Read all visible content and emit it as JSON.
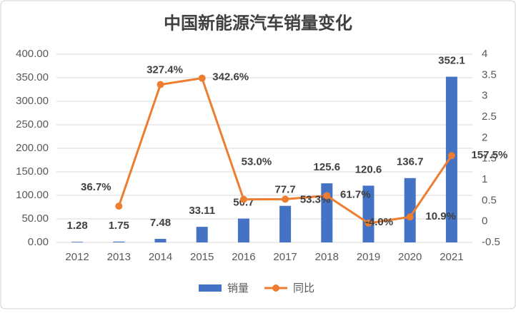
{
  "chart_data": {
    "type": "bar-line",
    "title": "中国新能源汽车销量变化",
    "categories": [
      "2012",
      "2013",
      "2014",
      "2015",
      "2016",
      "2017",
      "2018",
      "2019",
      "2020",
      "2021"
    ],
    "series": [
      {
        "name": "销量",
        "type": "bar",
        "color": "#4472c4",
        "values": [
          1.28,
          1.75,
          7.48,
          33.11,
          50.7,
          77.7,
          125.6,
          120.6,
          136.7,
          352.1
        ]
      },
      {
        "name": "同比",
        "type": "line",
        "axis": "y2",
        "color": "#ed7d31",
        "values": [
          null,
          0.367,
          3.274,
          3.426,
          0.53,
          0.533,
          0.617,
          -0.04,
          0.109,
          1.575
        ],
        "value_labels": [
          null,
          "36.7%",
          "327.4%",
          "342.6%",
          "53.0%",
          "53.3%",
          "61.7%",
          "-4.0%",
          "10.9%",
          "157.5%"
        ]
      }
    ],
    "ylim": [
      0,
      400
    ],
    "yticks": [
      {
        "value": 0,
        "label": "0.00"
      },
      {
        "value": 50,
        "label": "50.00"
      },
      {
        "value": 100,
        "label": "100.00"
      },
      {
        "value": 150,
        "label": "150.00"
      },
      {
        "value": 200,
        "label": "200.00"
      },
      {
        "value": 250,
        "label": "250.00"
      },
      {
        "value": 300,
        "label": "300.00"
      },
      {
        "value": 350,
        "label": "350.00"
      },
      {
        "value": 400,
        "label": "400.00"
      }
    ],
    "y2lim": [
      -0.5,
      4
    ],
    "y2ticks": [
      -0.5,
      0,
      0.5,
      1,
      1.5,
      2,
      2.5,
      3,
      3.5,
      4
    ],
    "grid": true,
    "legend": "bottom"
  }
}
